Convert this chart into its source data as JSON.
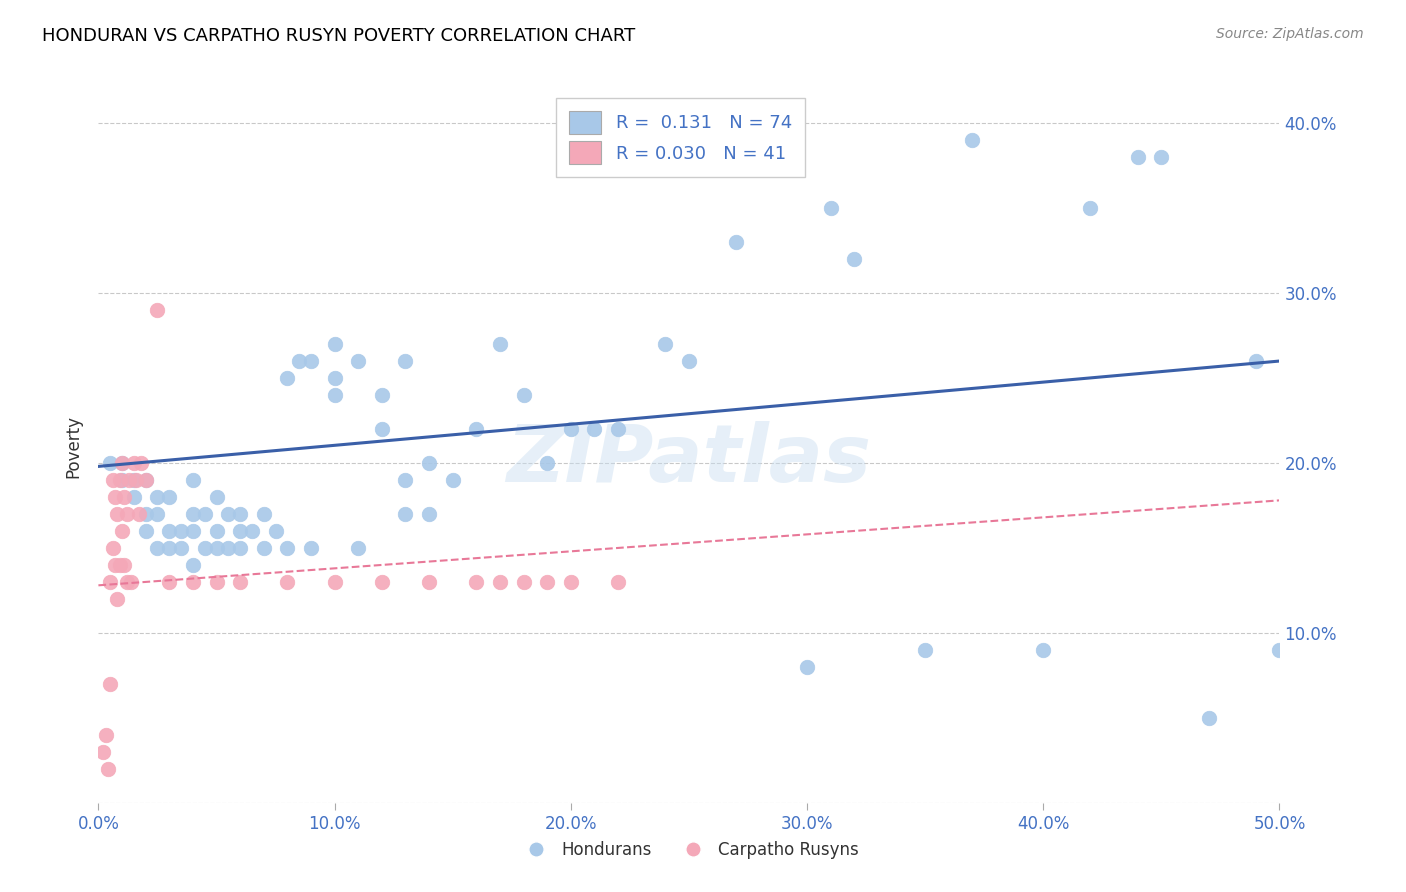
{
  "title": "HONDURAN VS CARPATHO RUSYN POVERTY CORRELATION CHART",
  "source": "Source: ZipAtlas.com",
  "ylabel": "Poverty",
  "xlim": [
    0.0,
    0.5
  ],
  "ylim": [
    0.0,
    0.42
  ],
  "xticks": [
    0.0,
    0.1,
    0.2,
    0.3,
    0.4,
    0.5
  ],
  "yticks": [
    0.0,
    0.1,
    0.2,
    0.3,
    0.4
  ],
  "xticklabels": [
    "0.0%",
    "10.0%",
    "20.0%",
    "30.0%",
    "40.0%",
    "50.0%"
  ],
  "yticklabels_right": [
    "",
    "10.0%",
    "20.0%",
    "30.0%",
    "40.0%"
  ],
  "blue_R": 0.131,
  "blue_N": 74,
  "pink_R": 0.03,
  "pink_N": 41,
  "blue_color": "#a8c8e8",
  "pink_color": "#f4a8b8",
  "blue_line_color": "#3a5fa8",
  "pink_line_color": "#e87898",
  "watermark": "ZIPatlas",
  "blue_scatter_x": [
    0.005,
    0.01,
    0.01,
    0.015,
    0.015,
    0.02,
    0.02,
    0.02,
    0.025,
    0.025,
    0.025,
    0.03,
    0.03,
    0.03,
    0.035,
    0.035,
    0.04,
    0.04,
    0.04,
    0.04,
    0.045,
    0.045,
    0.05,
    0.05,
    0.05,
    0.055,
    0.055,
    0.06,
    0.06,
    0.06,
    0.065,
    0.07,
    0.07,
    0.075,
    0.08,
    0.08,
    0.085,
    0.09,
    0.09,
    0.1,
    0.1,
    0.1,
    0.11,
    0.11,
    0.12,
    0.12,
    0.13,
    0.13,
    0.13,
    0.14,
    0.14,
    0.15,
    0.16,
    0.17,
    0.18,
    0.19,
    0.2,
    0.21,
    0.22,
    0.24,
    0.25,
    0.27,
    0.3,
    0.31,
    0.32,
    0.35,
    0.37,
    0.4,
    0.42,
    0.44,
    0.45,
    0.47,
    0.49,
    0.5
  ],
  "blue_scatter_y": [
    0.2,
    0.19,
    0.2,
    0.18,
    0.19,
    0.16,
    0.17,
    0.19,
    0.15,
    0.17,
    0.18,
    0.15,
    0.16,
    0.18,
    0.15,
    0.16,
    0.14,
    0.16,
    0.17,
    0.19,
    0.15,
    0.17,
    0.15,
    0.16,
    0.18,
    0.15,
    0.17,
    0.15,
    0.16,
    0.17,
    0.16,
    0.15,
    0.17,
    0.16,
    0.15,
    0.25,
    0.26,
    0.15,
    0.26,
    0.24,
    0.25,
    0.27,
    0.15,
    0.26,
    0.22,
    0.24,
    0.17,
    0.19,
    0.26,
    0.17,
    0.2,
    0.19,
    0.22,
    0.27,
    0.24,
    0.2,
    0.22,
    0.22,
    0.22,
    0.27,
    0.26,
    0.33,
    0.08,
    0.35,
    0.32,
    0.09,
    0.39,
    0.09,
    0.35,
    0.38,
    0.38,
    0.05,
    0.26,
    0.09
  ],
  "pink_scatter_x": [
    0.002,
    0.003,
    0.004,
    0.005,
    0.005,
    0.006,
    0.006,
    0.007,
    0.007,
    0.008,
    0.008,
    0.009,
    0.009,
    0.01,
    0.01,
    0.011,
    0.011,
    0.012,
    0.012,
    0.013,
    0.014,
    0.015,
    0.016,
    0.017,
    0.018,
    0.02,
    0.025,
    0.03,
    0.04,
    0.05,
    0.06,
    0.08,
    0.1,
    0.12,
    0.14,
    0.16,
    0.17,
    0.18,
    0.19,
    0.2,
    0.22
  ],
  "pink_scatter_y": [
    0.03,
    0.04,
    0.02,
    0.13,
    0.07,
    0.19,
    0.15,
    0.18,
    0.14,
    0.17,
    0.12,
    0.19,
    0.14,
    0.2,
    0.16,
    0.18,
    0.14,
    0.17,
    0.13,
    0.19,
    0.13,
    0.2,
    0.19,
    0.17,
    0.2,
    0.19,
    0.29,
    0.13,
    0.13,
    0.13,
    0.13,
    0.13,
    0.13,
    0.13,
    0.13,
    0.13,
    0.13,
    0.13,
    0.13,
    0.13,
    0.13
  ],
  "blue_trend_x": [
    0.0,
    0.5
  ],
  "blue_trend_y": [
    0.198,
    0.26
  ],
  "pink_trend_x": [
    0.0,
    0.5
  ],
  "pink_trend_y": [
    0.128,
    0.178
  ],
  "background_color": "#ffffff",
  "grid_color": "#bbbbbb"
}
